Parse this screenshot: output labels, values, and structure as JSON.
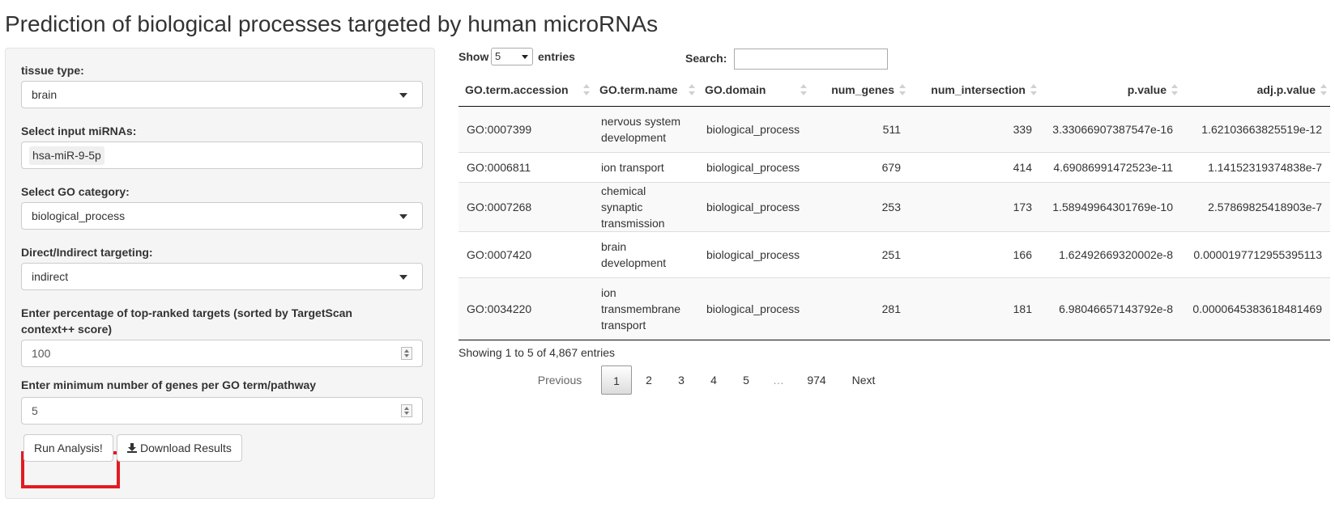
{
  "page": {
    "title": "Prediction of biological processes targeted by human microRNAs"
  },
  "sidebar": {
    "tissue_label": "tissue type:",
    "tissue_value": "brain",
    "mirna_label": "Select input miRNAs:",
    "mirna_value": "hsa-miR-9-5p",
    "go_label": "Select GO category:",
    "go_value": "biological_process",
    "targeting_label": "Direct/Indirect targeting:",
    "targeting_value": "indirect",
    "percent_label_line1": "Enter percentage of top-ranked targets (sorted by TargetScan",
    "percent_label_line2": "context++ score)",
    "percent_value": "100",
    "mingenes_label": "Enter minimum number of genes per GO term/pathway",
    "mingenes_value": "5",
    "run_button": "Run Analysis!",
    "download_button": "Download Results",
    "highlight_color": "#e21b23"
  },
  "table_controls": {
    "show_label": "Show",
    "length_value": "5",
    "entries_label": "entries",
    "search_label": "Search:"
  },
  "table": {
    "columns": [
      "GO.term.accession",
      "GO.term.name",
      "GO.domain",
      "num_genes",
      "num_intersection",
      "p.value",
      "adj.p.value"
    ],
    "rows": [
      {
        "accession": "GO:0007399",
        "name_l1": "nervous system",
        "name_l2": "development",
        "name_l3": "",
        "domain": "biological_process",
        "num_genes": "511",
        "num_intersection": "339",
        "p_value": "3.33066907387547e-16",
        "adj_p_value": "1.62103663825519e-12"
      },
      {
        "accession": "GO:0006811",
        "name_l1": "ion transport",
        "name_l2": "",
        "name_l3": "",
        "domain": "biological_process",
        "num_genes": "679",
        "num_intersection": "414",
        "p_value": "4.69086991472523e-11",
        "adj_p_value": "1.14152319374838e-7"
      },
      {
        "accession": "GO:0007268",
        "name_l1": "chemical synaptic",
        "name_l2": "transmission",
        "name_l3": "",
        "domain": "biological_process",
        "num_genes": "253",
        "num_intersection": "173",
        "p_value": "1.58949964301769e-10",
        "adj_p_value": "2.57869825418903e-7"
      },
      {
        "accession": "GO:0007420",
        "name_l1": "brain",
        "name_l2": "development",
        "name_l3": "",
        "domain": "biological_process",
        "num_genes": "251",
        "num_intersection": "166",
        "p_value": "1.62492669320002e-8",
        "adj_p_value": "0.0000197712955395113"
      },
      {
        "accession": "GO:0034220",
        "name_l1": "ion",
        "name_l2": "transmembrane",
        "name_l3": "transport",
        "domain": "biological_process",
        "num_genes": "281",
        "num_intersection": "181",
        "p_value": "6.98046657143792e-8",
        "adj_p_value": "0.0000645383618481469"
      }
    ]
  },
  "footer": {
    "info": "Showing 1 to 5 of 4,867 entries",
    "pagination": {
      "previous": "Previous",
      "pages": [
        "1",
        "2",
        "3",
        "4",
        "5",
        "…",
        "974"
      ],
      "next": "Next"
    }
  }
}
